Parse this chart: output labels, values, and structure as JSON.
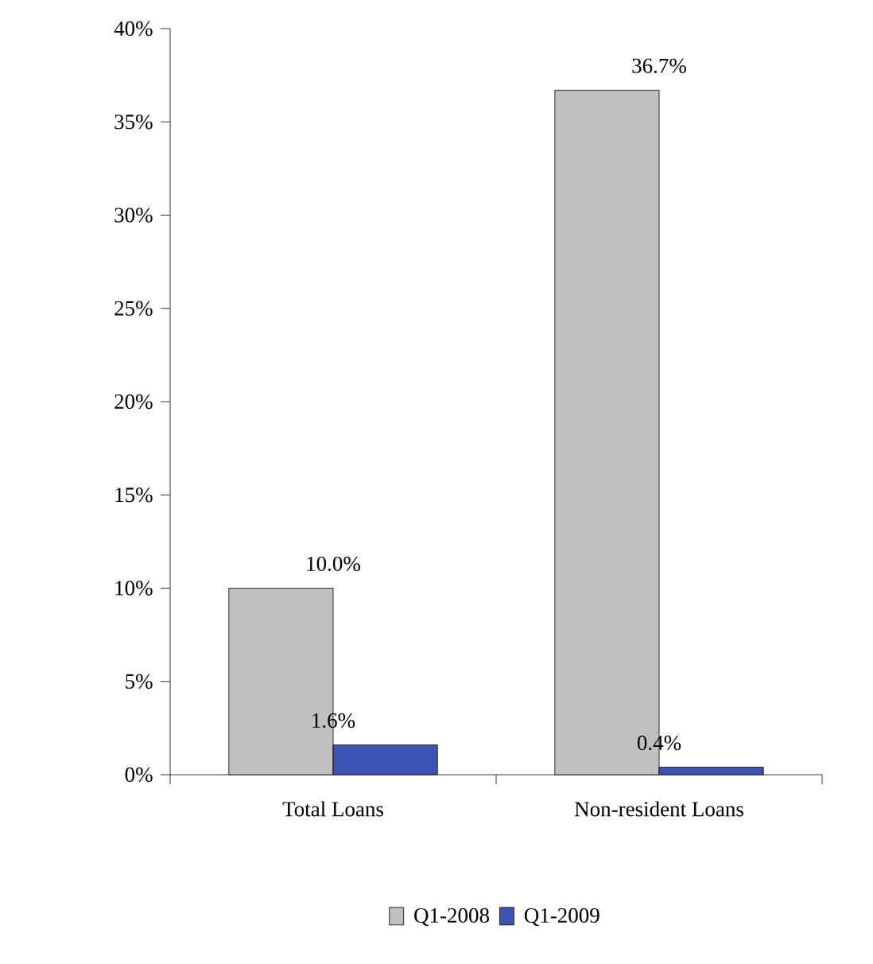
{
  "chart_data": {
    "type": "bar",
    "categories": [
      "Total Loans",
      "Non-resident Loans"
    ],
    "series": [
      {
        "name": "Q1-2008",
        "color": "#c0c0c0",
        "values": [
          10.0,
          36.7
        ],
        "value_labels": [
          "10.0%",
          "36.7%"
        ]
      },
      {
        "name": "Q1-2009",
        "color": "#3c55b4",
        "values": [
          1.6,
          0.4
        ],
        "value_labels": [
          "1.6%",
          "0.4%"
        ]
      }
    ],
    "ylim": [
      0,
      40
    ],
    "yticks": [
      {
        "value": 0,
        "label": "0%"
      },
      {
        "value": 5,
        "label": "5%"
      },
      {
        "value": 10,
        "label": "10%"
      },
      {
        "value": 15,
        "label": "15%"
      },
      {
        "value": 20,
        "label": "20%"
      },
      {
        "value": 25,
        "label": "25%"
      },
      {
        "value": 30,
        "label": "30%"
      },
      {
        "value": 35,
        "label": "35%"
      },
      {
        "value": 40,
        "label": "40%"
      }
    ],
    "legend": "bottom"
  }
}
